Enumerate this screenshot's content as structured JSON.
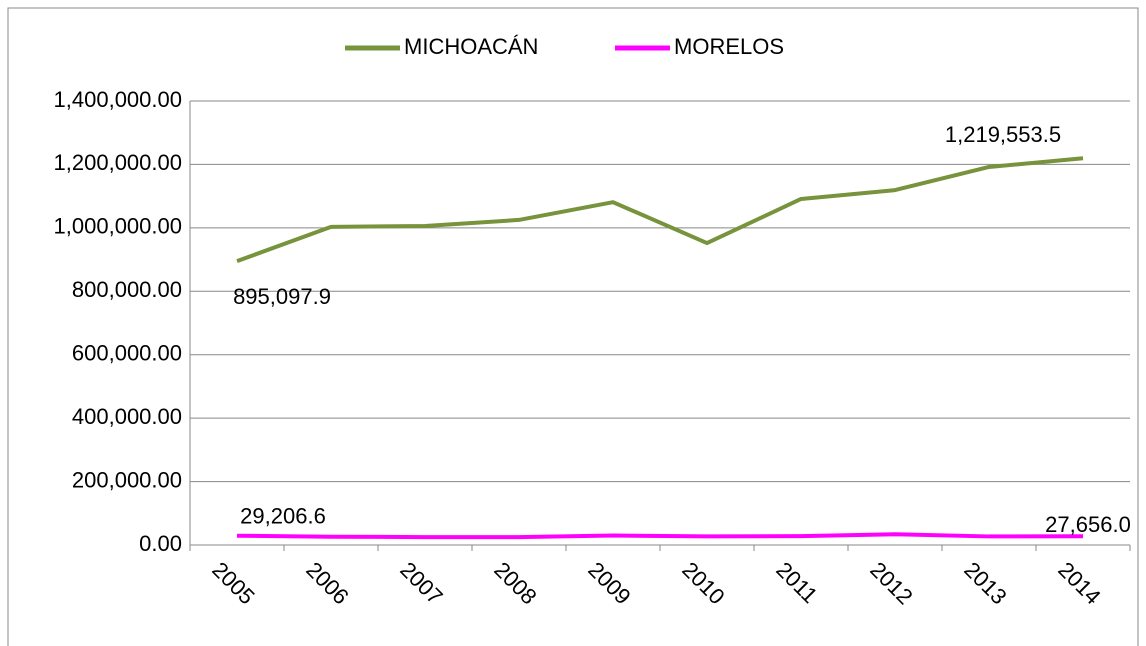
{
  "chart_data": {
    "type": "line",
    "categories": [
      "2005",
      "2006",
      "2007",
      "2008",
      "2009",
      "2010",
      "2011",
      "2012",
      "2013",
      "2014"
    ],
    "series": [
      {
        "name": "MICHOACÁN",
        "color": "#77933c",
        "values": [
          895097.9,
          1003000,
          1006000,
          1025000,
          1081000,
          952000,
          1091000,
          1119000,
          1192000,
          1219553.5
        ],
        "value_labels": [
          "895,097.9",
          null,
          null,
          null,
          null,
          null,
          null,
          null,
          null,
          "1,219,553.5"
        ]
      },
      {
        "name": "MORELOS",
        "color": "#ff00ff",
        "values": [
          29206.6,
          26000,
          25000,
          25000,
          30000,
          27000,
          28000,
          34000,
          27000,
          27656.0
        ],
        "value_labels": [
          "29,206.6",
          null,
          null,
          null,
          null,
          null,
          null,
          null,
          null,
          "27,656.0"
        ]
      }
    ],
    "ylim": [
      0,
      1400000
    ],
    "yticks": [
      {
        "value": 0,
        "label": "0.00"
      },
      {
        "value": 200000,
        "label": "200,000.00"
      },
      {
        "value": 400000,
        "label": "400,000.00"
      },
      {
        "value": 600000,
        "label": "600,000.00"
      },
      {
        "value": 800000,
        "label": "800,000.00"
      },
      {
        "value": 1000000,
        "label": "1,000,000.00"
      },
      {
        "value": 1200000,
        "label": "1,200,000.00"
      },
      {
        "value": 1400000,
        "label": "1,400,000.00"
      }
    ],
    "grid": true,
    "legend": "top"
  }
}
